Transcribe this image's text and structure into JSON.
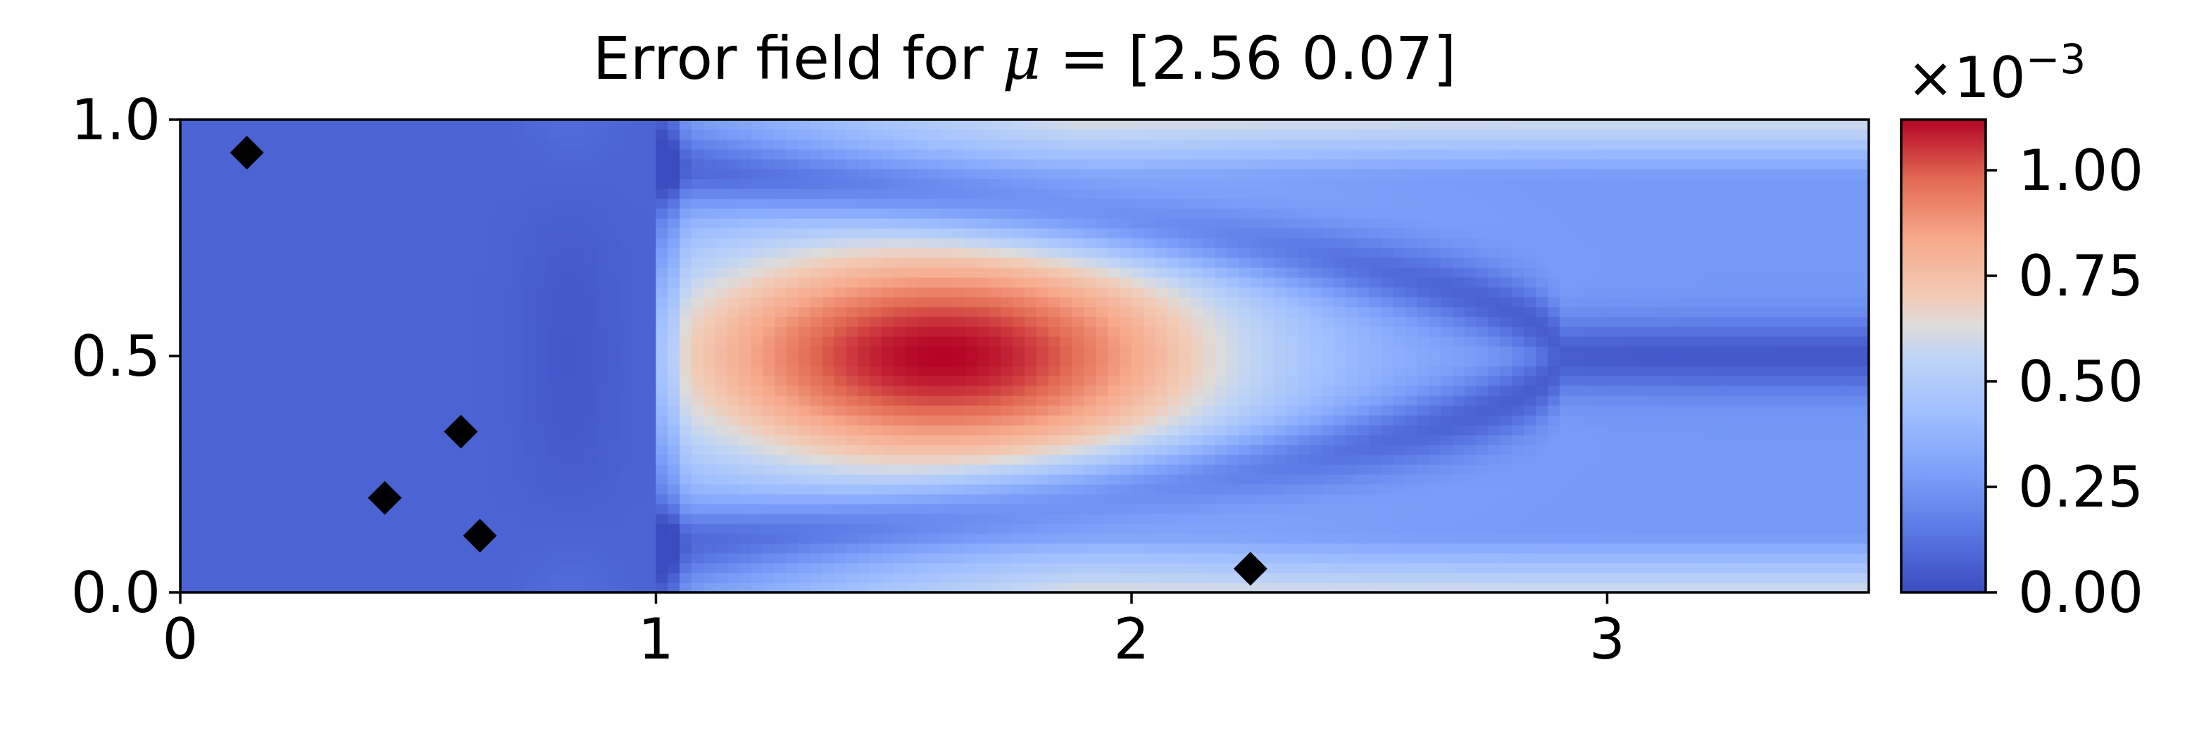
{
  "chart_data": {
    "type": "heatmap",
    "title": "Error field for μ = [2.56 0.07]",
    "title_parts": {
      "prefix": "Error field for ",
      "symbol": "μ",
      "suffix": " = [2.56 0.07]"
    },
    "xlabel": "",
    "ylabel": "",
    "xlim": [
      0,
      3.55
    ],
    "ylim": [
      0,
      1.0
    ],
    "x_ticks": [
      0,
      1,
      2,
      3
    ],
    "x_tick_labels": [
      "0",
      "1",
      "2",
      "3"
    ],
    "y_ticks": [
      0.0,
      0.5,
      1.0
    ],
    "y_tick_labels": [
      "0.0",
      "0.5",
      "1.0"
    ],
    "colormap": "coolwarm",
    "colorbar": {
      "range": [
        0,
        1.12
      ],
      "ticks": [
        0.0,
        0.25,
        0.5,
        0.75,
        1.0
      ],
      "tick_labels": [
        "0.00",
        "0.25",
        "0.50",
        "0.75",
        "1.00"
      ],
      "scale_label": {
        "base": "×10",
        "exponent": "−3"
      }
    },
    "grid": false,
    "markers": {
      "shape": "diamond",
      "color": "#000000",
      "points": [
        {
          "x": 0.14,
          "y": 0.93
        },
        {
          "x": 0.43,
          "y": 0.2
        },
        {
          "x": 0.59,
          "y": 0.34
        },
        {
          "x": 0.63,
          "y": 0.12
        },
        {
          "x": 2.25,
          "y": 0.05
        }
      ]
    },
    "field_features": {
      "peak": {
        "x": 1.6,
        "y": 0.5,
        "value": 1.12
      },
      "background_value": 0.05,
      "outlet_corner_value": 0.65
    }
  }
}
